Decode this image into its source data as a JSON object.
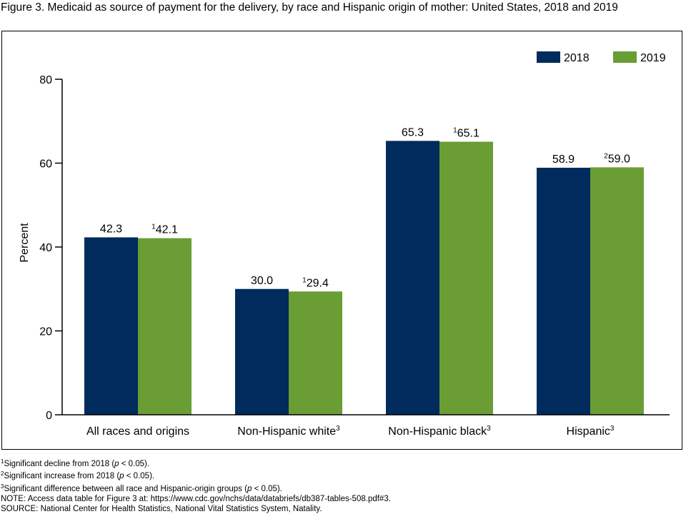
{
  "title": "Figure 3. Medicaid as source of payment for the delivery, by race and Hispanic origin of mother: United States, 2018 and 2019",
  "chart_data": {
    "type": "bar",
    "ylabel": "Percent",
    "ylim": [
      0,
      80
    ],
    "yticks": [
      0,
      20,
      40,
      60,
      80
    ],
    "grid": false,
    "legend_position": "top-right",
    "categories": [
      {
        "label": "All races and origins",
        "sup": ""
      },
      {
        "label": "Non-Hispanic white",
        "sup": "3"
      },
      {
        "label": "Non-Hispanic black",
        "sup": "3"
      },
      {
        "label": "Hispanic",
        "sup": "3"
      }
    ],
    "series": [
      {
        "name": "2018",
        "color": "#002b5c",
        "values": [
          42.3,
          30.0,
          65.3,
          58.9
        ],
        "labels": [
          "42.3",
          "30.0",
          "65.3",
          "58.9"
        ],
        "label_sups": [
          "",
          "",
          "",
          ""
        ]
      },
      {
        "name": "2019",
        "color": "#6a9d34",
        "values": [
          42.1,
          29.4,
          65.1,
          59.0
        ],
        "labels": [
          "42.1",
          "29.4",
          "65.1",
          "59.0"
        ],
        "label_sups": [
          "1",
          "1",
          "1",
          "2"
        ]
      }
    ]
  },
  "footnotes": [
    {
      "sup": "1",
      "pre": "Significant decline from 2018 (",
      "italic": "p",
      "post": " < 0.05)."
    },
    {
      "sup": "2",
      "pre": "Significant increase from 2018 (",
      "italic": "p",
      "post": " < 0.05)."
    },
    {
      "sup": "3",
      "pre": "Significant difference between all race and Hispanic-origin groups (",
      "italic": "p",
      "post": " < 0.05)."
    }
  ],
  "note": "NOTE: Access data table for Figure 3 at: https://www.cdc.gov/nchs/data/databriefs/db387-tables-508.pdf#3.",
  "source": "SOURCE: National Center for Health Statistics, National Vital Statistics System, Natality."
}
